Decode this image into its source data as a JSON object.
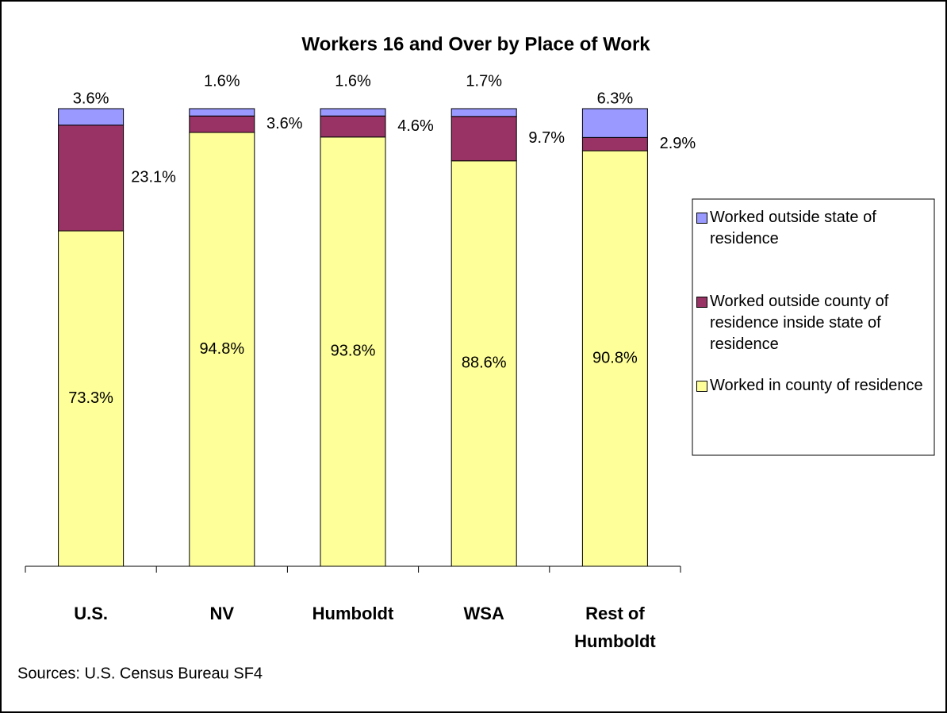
{
  "chart_data": {
    "type": "stacked_bar",
    "title": "Workers 16 and Over by Place of Work",
    "source": "Sources: U.S. Census Bureau SF4",
    "categories": [
      "U.S.",
      "NV",
      "Humboldt",
      "WSA",
      "Rest of Humboldt"
    ],
    "ylim": [
      0,
      100
    ],
    "series": [
      {
        "name": "Worked in county of residence",
        "color": "#ffff99",
        "values": [
          73.3,
          94.8,
          93.8,
          88.6,
          90.8
        ],
        "value_labels": [
          "73.3%",
          "94.8%",
          "93.8%",
          "88.6%",
          "90.8%"
        ]
      },
      {
        "name": "Worked outside county of residence inside state of residence",
        "color": "#993366",
        "values": [
          23.1,
          3.6,
          4.6,
          9.7,
          2.9
        ],
        "value_labels": [
          "23.1%",
          "3.6%",
          "4.6%",
          "9.7%",
          "2.9%"
        ]
      },
      {
        "name": "Worked outside state of residence",
        "color": "#9999ff",
        "values": [
          3.6,
          1.6,
          1.6,
          1.7,
          6.3
        ],
        "value_labels": [
          "3.6%",
          "1.6%",
          "1.6%",
          "1.7%",
          "6.3%"
        ]
      }
    ]
  }
}
